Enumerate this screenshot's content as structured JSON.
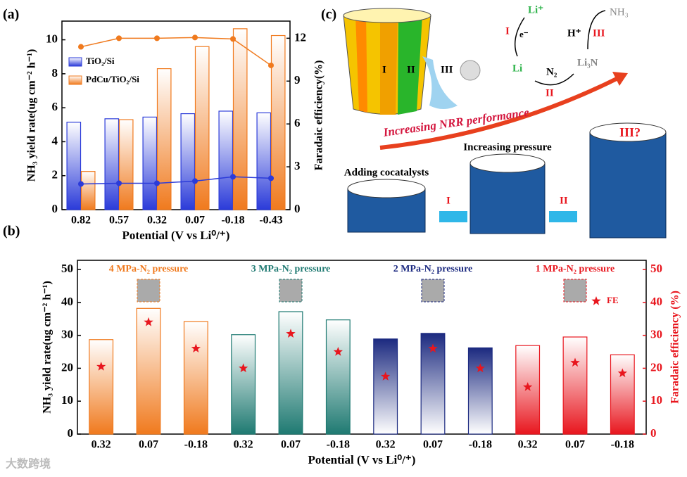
{
  "chart_data": [
    {
      "type": "bar",
      "panel": "(a)",
      "categories": [
        "0.82",
        "0.57",
        "0.32",
        "0.07",
        "-0.18",
        "-0.43"
      ],
      "xlabel": "Potential (V vs Li⁰/⁺)",
      "ylabel": "NH₃ yield rate(ug cm⁻² h⁻¹)",
      "y2label": "Faradaic efficiency(%)",
      "ylim": [
        0,
        11.1
      ],
      "yticks": [
        0,
        2,
        4,
        6,
        8,
        10
      ],
      "y2lim": [
        0,
        13.2
      ],
      "y2ticks": [
        0,
        3,
        6,
        9,
        12
      ],
      "legend": "upper left",
      "series": [
        {
          "name": "TiO₂/Si",
          "color": "#2b3bd9",
          "type": "bar",
          "values": [
            5.15,
            5.35,
            5.45,
            5.65,
            5.8,
            5.7
          ]
        },
        {
          "name": "PdCu/TiO₂/Si",
          "color": "#f07a1e",
          "type": "bar",
          "values": [
            2.25,
            5.3,
            8.3,
            9.6,
            10.65,
            10.25
          ]
        },
        {
          "name": "TiO₂/Si",
          "color": "#2b3bd9",
          "type": "line",
          "axis": "y2",
          "values": [
            1.8,
            1.85,
            1.85,
            2.0,
            2.3,
            2.2
          ]
        },
        {
          "name": "PdCu/TiO₂/Si",
          "color": "#f07a1e",
          "type": "line",
          "axis": "y2",
          "values": [
            11.4,
            12.0,
            12.0,
            12.05,
            11.95,
            10.1
          ]
        }
      ]
    },
    {
      "type": "bar",
      "panel": "(b)",
      "categories": [
        "0.32",
        "0.07",
        "-0.18",
        "0.32",
        "0.07",
        "-0.18",
        "0.32",
        "0.07",
        "-0.18",
        "0.32",
        "0.07",
        "-0.18"
      ],
      "xlabel": "Potential (V vs Li⁰/⁺)",
      "ylabel": "NH₃ yield rate(ug cm⁻² h⁻¹)",
      "y2label": "Faradaic efficiency (%)",
      "y2color": "#e8161e",
      "ylim": [
        0,
        52.8
      ],
      "yticks": [
        0,
        10,
        20,
        30,
        40,
        50
      ],
      "y2lim": [
        0,
        52.8
      ],
      "y2ticks": [
        0,
        10,
        20,
        30,
        40,
        50
      ],
      "legend": "upper right",
      "groups": [
        {
          "label": "4 MPa-N₂ pressure",
          "color": "#f07a1e",
          "fill": "up"
        },
        {
          "label": "3 MPa-N₂ pressure",
          "color": "#1f7a72",
          "fill": "up"
        },
        {
          "label": "2 MPa-N₂ pressure",
          "color": "#1c2a80",
          "fill": "down"
        },
        {
          "label": "1 MPa-N₂ pressure",
          "color": "#e8161e",
          "fill": "up"
        }
      ],
      "series": [
        {
          "type": "bar",
          "values": [
            28.7,
            38.2,
            34.2,
            30.2,
            37.2,
            34.7,
            28.9,
            30.6,
            26.2,
            26.9,
            29.5,
            24.1
          ]
        },
        {
          "name": "FE",
          "color": "#e8161e",
          "type": "scatter",
          "marker": "star",
          "axis": "y2",
          "values": [
            20.5,
            34,
            26,
            20,
            30.5,
            25,
            17.5,
            26,
            20,
            14.3,
            21.7,
            18.5
          ]
        }
      ]
    }
  ],
  "diagram": {
    "panel": "(c)",
    "bucket": [
      "I",
      "II",
      "III"
    ],
    "li_plus": "Li⁺",
    "electron": "e⁻",
    "step1": "I",
    "li": "Li",
    "n2": "N₂",
    "step2": "II",
    "li3n": "Li₃N",
    "h_plus": "H⁺",
    "step3": "III",
    "nh3": "NH₃",
    "trend": "Increasing NRR performance",
    "cyl1": "Adding cocatalysts",
    "arrow1": "I",
    "cyl2": "Increasing pressure",
    "arrow2": "II",
    "cyl3": "III?"
  },
  "watermark": "大数跨境"
}
